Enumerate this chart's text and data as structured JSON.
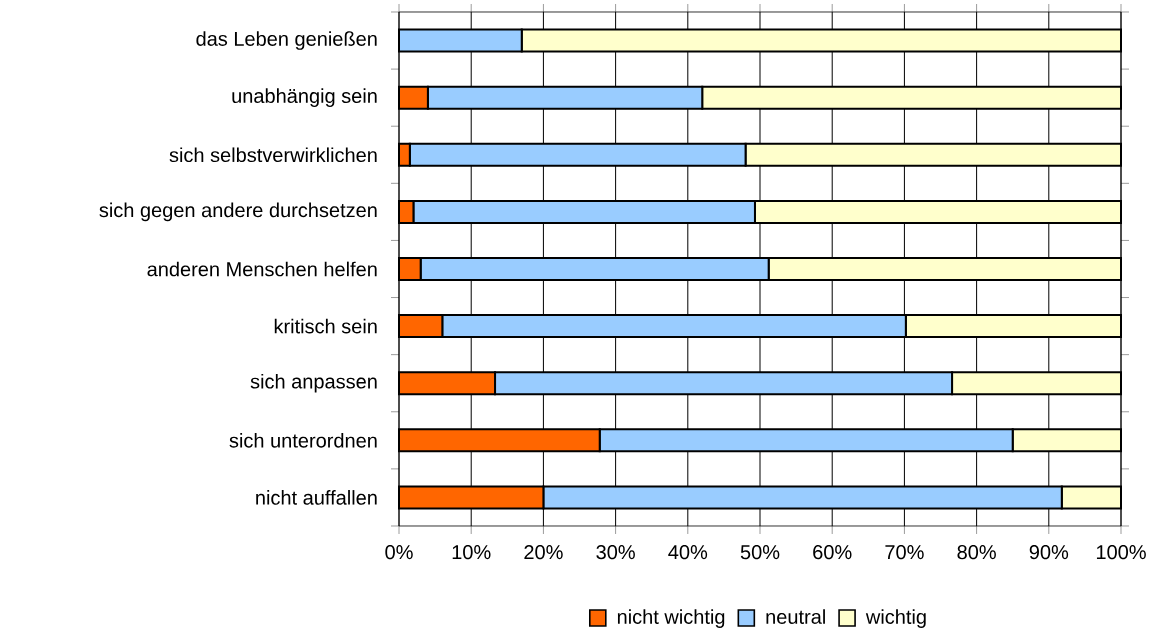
{
  "chart_data": {
    "type": "bar",
    "orientation": "horizontal",
    "stacked": true,
    "categories": [
      "das Leben genießen",
      "unabhängig sein",
      "sich selbstverwirklichen",
      "sich gegen andere durchsetzen",
      "anderen Menschen helfen",
      "kritisch sein",
      "sich anpassen",
      "sich unterordnen",
      "nicht auffallen"
    ],
    "series": [
      {
        "name": "nicht wichtig",
        "color": "#ff6600",
        "values": [
          0,
          4,
          1.5,
          2,
          3,
          6,
          13.3,
          27.8,
          20
        ]
      },
      {
        "name": "neutral",
        "color": "#99ccff",
        "values": [
          17,
          38,
          46.5,
          47.3,
          48.2,
          64.2,
          63.3,
          57.2,
          71.8
        ]
      },
      {
        "name": "wichtig",
        "color": "#ffffcc",
        "values": [
          83,
          58,
          52,
          50.7,
          48.8,
          29.8,
          23.4,
          15,
          8.2
        ]
      }
    ],
    "xlim": [
      0,
      100
    ],
    "xticks": [
      {
        "value": 0,
        "label": "0%"
      },
      {
        "value": 10,
        "label": "10%"
      },
      {
        "value": 20,
        "label": "20%"
      },
      {
        "value": 30,
        "label": "30%"
      },
      {
        "value": 40,
        "label": "40%"
      },
      {
        "value": 50,
        "label": "50%"
      },
      {
        "value": 60,
        "label": "60%"
      },
      {
        "value": 70,
        "label": "70%"
      },
      {
        "value": 80,
        "label": "80%"
      },
      {
        "value": 90,
        "label": "90%"
      },
      {
        "value": 100,
        "label": "100%"
      }
    ],
    "grid": "x",
    "legend": "bottom"
  }
}
